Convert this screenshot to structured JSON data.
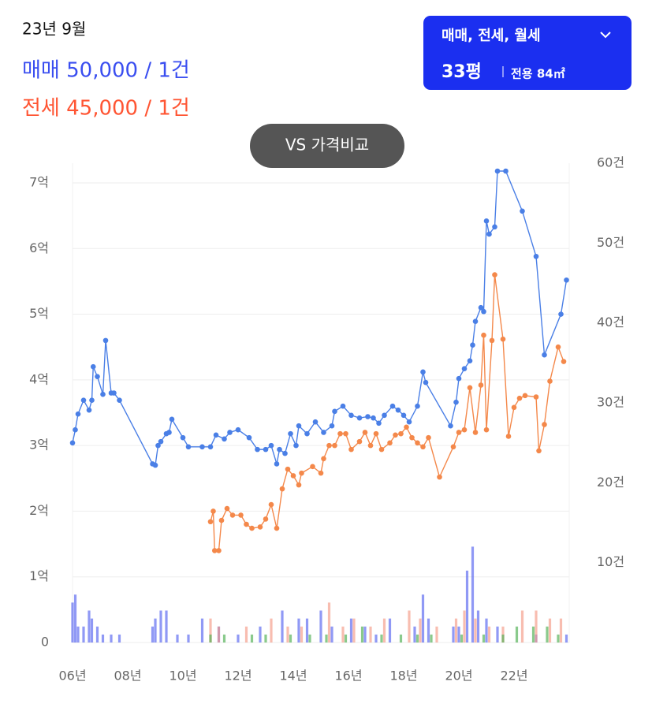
{
  "header": {
    "date": "23년 9월",
    "sale": "매매 50,000 / 1건",
    "jeonse": "전세 45,000 / 1건"
  },
  "filter": {
    "label": "매매, 전세, 월세",
    "size": "33평",
    "area": "전용 84㎡"
  },
  "compare_button": "VS 가격비교",
  "chart_data": {
    "type": "line",
    "xlim": [
      2006,
      2024
    ],
    "xticks": [
      {
        "value": 2006,
        "label": "06년"
      },
      {
        "value": 2008,
        "label": "08년"
      },
      {
        "value": 2010,
        "label": "10년"
      },
      {
        "value": 2012,
        "label": "12년"
      },
      {
        "value": 2014,
        "label": "14년"
      },
      {
        "value": 2016,
        "label": "16년"
      },
      {
        "value": 2018,
        "label": "18년"
      },
      {
        "value": 2020,
        "label": "20년"
      },
      {
        "value": 2022,
        "label": "22년"
      }
    ],
    "ylim": [
      0,
      7.3
    ],
    "yticks": [
      0,
      {
        "value": 1,
        "label": "1억"
      },
      {
        "value": 2,
        "label": "2억"
      },
      {
        "value": 3,
        "label": "3억"
      },
      {
        "value": 4,
        "label": "4억"
      },
      {
        "value": 5,
        "label": "5억"
      },
      {
        "value": 6,
        "label": "6억"
      },
      {
        "value": 7,
        "label": "7억"
      }
    ],
    "y2lim": [
      0,
      60
    ],
    "y2ticks": [
      {
        "value": 10,
        "label": "10건"
      },
      {
        "value": 20,
        "label": "20건"
      },
      {
        "value": 30,
        "label": "30건"
      },
      {
        "value": 40,
        "label": "40건"
      },
      {
        "value": 50,
        "label": "50건"
      },
      {
        "value": 60,
        "label": "60건"
      }
    ],
    "grid": true,
    "series": [
      {
        "type": "bar",
        "axis": "y2",
        "color": "#5563f0",
        "x": [
          2006.0,
          2006.1,
          2006.2,
          2006.4,
          2006.6,
          2006.7,
          2006.9,
          2007.1,
          2007.4,
          2007.7,
          2008.9,
          2009.0,
          2009.2,
          2009.4,
          2009.8,
          2010.2,
          2010.7,
          2011.3,
          2012.0,
          2012.8,
          2013.6,
          2014.2,
          2014.5,
          2015.0,
          2015.4,
          2016.1,
          2016.6,
          2017.0,
          2017.5,
          2018.4,
          2018.7,
          2018.9,
          2019.8,
          2020.0,
          2020.3,
          2020.5,
          2020.7,
          2021.0,
          2021.4,
          2022.8,
          2023.9
        ],
        "values": [
          5,
          6,
          2,
          2,
          4,
          3,
          2,
          1,
          1,
          1,
          2,
          3,
          4,
          4,
          1,
          1,
          3,
          2,
          1,
          2,
          4,
          3,
          3,
          4,
          2,
          3,
          2,
          1,
          3,
          2,
          6,
          3,
          2,
          2,
          9,
          12,
          4,
          3,
          2,
          1,
          1
        ]
      },
      {
        "type": "bar",
        "axis": "y2",
        "color": "#f59a86",
        "x": [
          2011.0,
          2011.3,
          2012.3,
          2013.2,
          2013.8,
          2014.3,
          2015.3,
          2015.8,
          2016.2,
          2016.8,
          2017.3,
          2018.2,
          2018.6,
          2019.2,
          2019.9,
          2020.2,
          2020.6,
          2021.1,
          2021.6,
          2022.3,
          2022.8,
          2023.3,
          2023.7
        ],
        "values": [
          3,
          2,
          2,
          3,
          2,
          2,
          5,
          2,
          3,
          2,
          3,
          4,
          3,
          2,
          3,
          4,
          3,
          2,
          2,
          4,
          4,
          3,
          3
        ]
      },
      {
        "type": "bar",
        "axis": "y2",
        "color": "#4caf50",
        "x": [
          2011.0,
          2011.5,
          2012.5,
          2013.0,
          2013.9,
          2014.6,
          2015.2,
          2015.9,
          2016.5,
          2017.2,
          2017.9,
          2018.5,
          2019.0,
          2020.1,
          2020.9,
          2021.6,
          2022.1,
          2022.7,
          2023.2,
          2023.6
        ],
        "values": [
          1,
          1,
          1,
          1,
          1,
          1,
          1,
          1,
          2,
          1,
          1,
          1,
          1,
          1,
          1,
          1,
          2,
          2,
          2,
          1
        ]
      },
      {
        "type": "line",
        "color": "#4a7fe6",
        "x": [
          2006.0,
          2006.1,
          2006.2,
          2006.4,
          2006.6,
          2006.7,
          2006.75,
          2006.9,
          2007.1,
          2007.2,
          2007.4,
          2007.5,
          2007.7,
          2008.9,
          2009.0,
          2009.1,
          2009.2,
          2009.4,
          2009.5,
          2009.6,
          2010.0,
          2010.2,
          2010.7,
          2011.0,
          2011.2,
          2011.5,
          2011.7,
          2012.0,
          2012.4,
          2012.7,
          2013.0,
          2013.2,
          2013.4,
          2013.5,
          2013.7,
          2013.9,
          2014.1,
          2014.2,
          2014.5,
          2014.8,
          2015.1,
          2015.4,
          2015.5,
          2015.8,
          2016.1,
          2016.4,
          2016.7,
          2016.9,
          2017.1,
          2017.3,
          2017.6,
          2017.8,
          2018.0,
          2018.2,
          2018.5,
          2018.7,
          2018.8,
          2019.7,
          2019.9,
          2020.0,
          2020.2,
          2020.4,
          2020.5,
          2020.6,
          2020.8,
          2020.9,
          2021.0,
          2021.1,
          2021.3,
          2021.4,
          2021.7,
          2022.3,
          2022.8,
          2023.1,
          2023.7,
          2023.9
        ],
        "values": [
          3.04,
          3.24,
          3.48,
          3.69,
          3.54,
          3.69,
          4.2,
          4.05,
          3.78,
          4.6,
          3.8,
          3.8,
          3.69,
          2.72,
          2.7,
          3.0,
          3.06,
          3.18,
          3.2,
          3.4,
          3.12,
          2.98,
          2.98,
          2.98,
          3.16,
          3.1,
          3.2,
          3.24,
          3.12,
          2.94,
          2.94,
          3.0,
          2.72,
          2.94,
          2.88,
          3.18,
          3.0,
          3.3,
          3.18,
          3.36,
          3.2,
          3.3,
          3.52,
          3.6,
          3.46,
          3.42,
          3.44,
          3.42,
          3.34,
          3.46,
          3.6,
          3.54,
          3.46,
          3.36,
          3.6,
          4.12,
          3.96,
          3.3,
          3.66,
          4.02,
          4.17,
          4.29,
          4.53,
          4.89,
          5.1,
          5.04,
          6.42,
          6.22,
          6.33,
          7.18,
          7.18,
          6.57,
          5.88,
          4.38,
          5.0,
          5.52
        ]
      },
      {
        "type": "line",
        "color": "#f4884a",
        "x": [
          2011.0,
          2011.1,
          2011.15,
          2011.3,
          2011.4,
          2011.6,
          2011.8,
          2012.1,
          2012.3,
          2012.5,
          2012.8,
          2013.0,
          2013.2,
          2013.4,
          2013.6,
          2013.8,
          2014.0,
          2014.2,
          2014.3,
          2014.7,
          2015.0,
          2015.1,
          2015.3,
          2015.5,
          2015.7,
          2015.9,
          2016.1,
          2016.4,
          2016.6,
          2016.8,
          2017.0,
          2017.2,
          2017.5,
          2017.7,
          2017.9,
          2018.1,
          2018.3,
          2018.5,
          2018.7,
          2018.9,
          2019.3,
          2019.8,
          2020.0,
          2020.2,
          2020.4,
          2020.6,
          2020.8,
          2020.9,
          2021.0,
          2021.2,
          2021.3,
          2021.6,
          2021.8,
          2022.0,
          2022.2,
          2022.4,
          2022.8,
          2022.9,
          2023.1,
          2023.3,
          2023.6,
          2023.8
        ],
        "values": [
          1.84,
          2.0,
          1.4,
          1.4,
          1.86,
          2.04,
          1.94,
          1.94,
          1.8,
          1.74,
          1.76,
          1.88,
          2.1,
          1.74,
          2.34,
          2.64,
          2.54,
          2.4,
          2.58,
          2.68,
          2.58,
          2.8,
          3.0,
          3.0,
          3.18,
          3.18,
          2.94,
          3.06,
          3.2,
          3.0,
          3.18,
          2.94,
          3.04,
          3.16,
          3.18,
          3.28,
          3.12,
          3.04,
          2.98,
          3.12,
          2.52,
          2.98,
          3.2,
          3.24,
          3.88,
          3.2,
          3.92,
          4.68,
          3.24,
          4.6,
          5.6,
          4.62,
          3.14,
          3.58,
          3.72,
          3.76,
          3.74,
          2.92,
          3.32,
          3.98,
          4.5,
          4.28
        ]
      }
    ]
  }
}
